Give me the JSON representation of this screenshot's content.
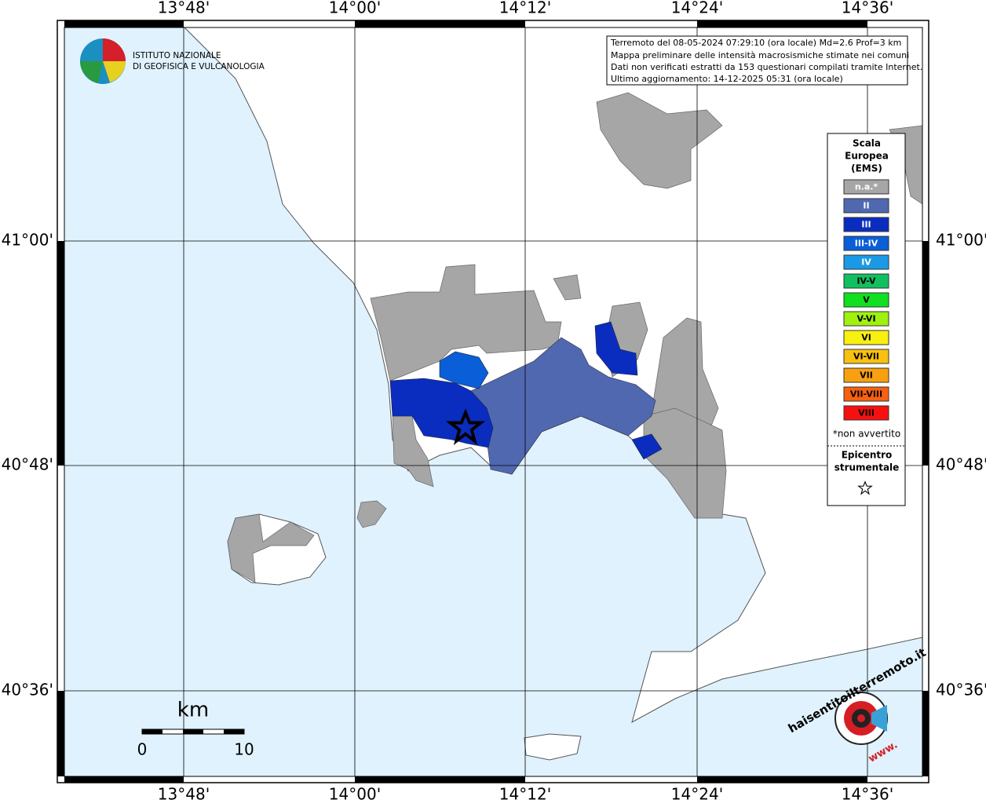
{
  "map": {
    "lon_labels": [
      "13°48'",
      "14°00'",
      "14°12'",
      "14°24'",
      "14°36'"
    ],
    "lat_labels": [
      "41°00'",
      "40°48'",
      "40°36'"
    ],
    "logo": [
      "ISTITUTO NAZIONALE",
      "DI GEOFISICA E VULCANOLOGIA"
    ],
    "info": [
      "Terremoto del 08-05-2024 07:29:10 (ora locale) Md=2.6 Prof=3 km",
      "Mappa preliminare delle intensità macrosismiche stimate nei comuni",
      "Dati non verificati estratti da 153 questionari compilati tramite Internet.",
      "Ultimo aggiornamento: 14-12-2025 05:31 (ora locale)"
    ],
    "legend": {
      "title": [
        "Scala",
        "Europea",
        "(EMS)"
      ],
      "items": [
        {
          "label": "n.a.*",
          "color": "#a6a6a6"
        },
        {
          "label": "II",
          "color": "#5068b0"
        },
        {
          "label": "III",
          "color": "#0a2dbf"
        },
        {
          "label": "III-IV",
          "color": "#0a5ed8"
        },
        {
          "label": "IV",
          "color": "#1a9ae6"
        },
        {
          "label": "IV-V",
          "color": "#10c060"
        },
        {
          "label": "V",
          "color": "#10e020"
        },
        {
          "label": "V-VI",
          "color": "#a0f010"
        },
        {
          "label": "VI",
          "color": "#f8f010"
        },
        {
          "label": "VI-VII",
          "color": "#f8c010"
        },
        {
          "label": "VII",
          "color": "#f8a010"
        },
        {
          "label": "VII-VIII",
          "color": "#f86010"
        },
        {
          "label": "VIII",
          "color": "#f81010"
        }
      ],
      "note": "*non avvertito",
      "epicenter": [
        "Epicentro",
        "strumentale"
      ]
    },
    "scale": {
      "unit": "km",
      "labels": [
        "0",
        "10"
      ]
    },
    "badge": {
      "text": "haisentitoilterremoto.it",
      "www": "www."
    }
  }
}
